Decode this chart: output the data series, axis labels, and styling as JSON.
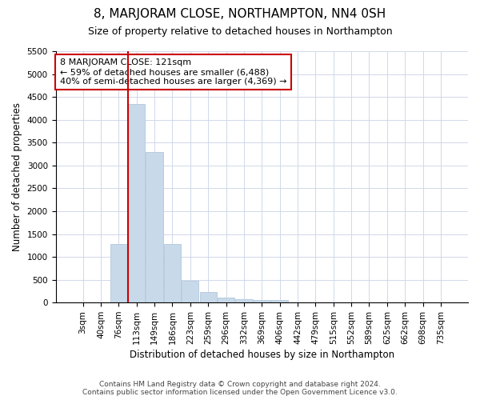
{
  "title": "8, MARJORAM CLOSE, NORTHAMPTON, NN4 0SH",
  "subtitle": "Size of property relative to detached houses in Northampton",
  "xlabel": "Distribution of detached houses by size in Northampton",
  "ylabel": "Number of detached properties",
  "property_label": "8 MARJORAM CLOSE: 121sqm",
  "annotation_line1": "← 59% of detached houses are smaller (6,488)",
  "annotation_line2": "40% of semi-detached houses are larger (4,369) →",
  "footer_line1": "Contains HM Land Registry data © Crown copyright and database right 2024.",
  "footer_line2": "Contains public sector information licensed under the Open Government Licence v3.0.",
  "bin_labels": [
    "3sqm",
    "40sqm",
    "76sqm",
    "113sqm",
    "149sqm",
    "186sqm",
    "223sqm",
    "259sqm",
    "296sqm",
    "332sqm",
    "369sqm",
    "406sqm",
    "442sqm",
    "479sqm",
    "515sqm",
    "552sqm",
    "589sqm",
    "625sqm",
    "662sqm",
    "698sqm",
    "735sqm"
  ],
  "bar_values": [
    0,
    0,
    1280,
    4350,
    3300,
    1280,
    480,
    230,
    100,
    75,
    50,
    50,
    0,
    0,
    0,
    0,
    0,
    0,
    0,
    0,
    0
  ],
  "bar_color": "#c8daea",
  "bar_edge_color": "#aabfd8",
  "vline_color": "#cc0000",
  "vline_x_index": 3,
  "ylim_max": 5500,
  "ytick_step": 500,
  "annotation_box_facecolor": "#ffffff",
  "annotation_box_edgecolor": "#cc0000",
  "grid_color": "#d0d8e8",
  "background_color": "#ffffff",
  "title_fontsize": 11,
  "subtitle_fontsize": 9,
  "axis_label_fontsize": 8.5,
  "tick_fontsize": 7.5,
  "annotation_fontsize": 8,
  "footer_fontsize": 6.5
}
